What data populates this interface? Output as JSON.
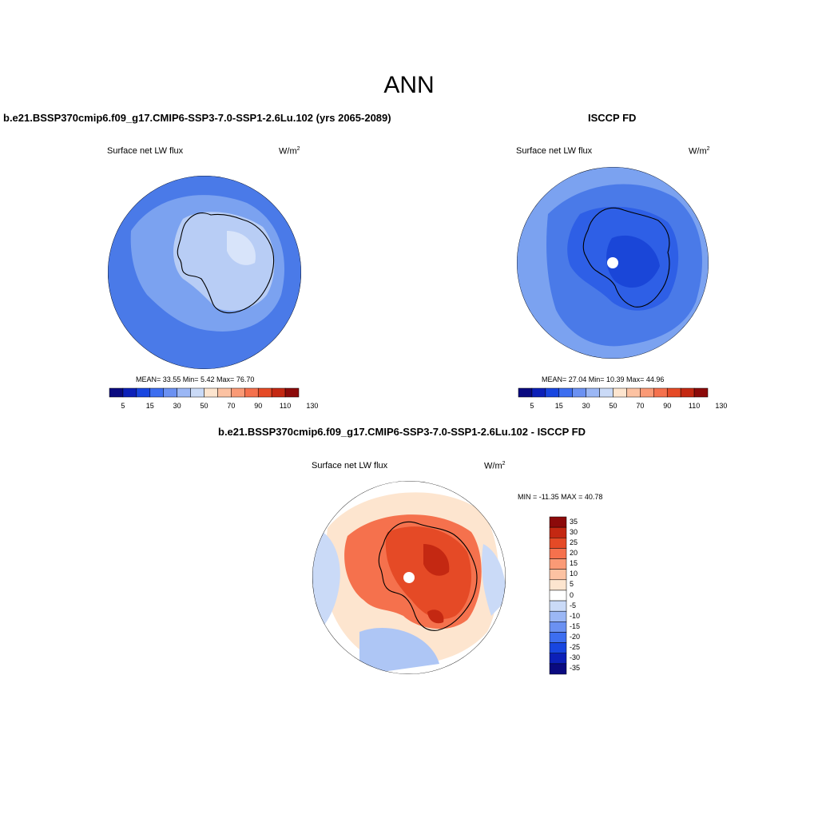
{
  "figure": {
    "title": "ANN"
  },
  "panels": {
    "model": {
      "title": "b.e21.BSSP370cmip6.f09_g17.CMIP6-SSP3-7.0-SSP1-2.6Lu.102 (yrs 2065-2089)",
      "variable": "Surface net LW flux",
      "units_base": "W/m",
      "units_exp": "2",
      "stats": "MEAN=  33.55  Min=   5.42  Max=  76.70"
    },
    "obs": {
      "title": "ISCCP FD",
      "variable": "Surface net LW flux",
      "units_base": "W/m",
      "units_exp": "2",
      "stats": "MEAN=  27.04  Min=  10.39  Max=  44.96"
    },
    "diff": {
      "title": "b.e21.BSSP370cmip6.f09_g17.CMIP6-SSP3-7.0-SSP1-2.6Lu.102 - ISCCP FD",
      "variable": "Surface net LW flux",
      "units_base": "W/m",
      "units_exp": "2",
      "stats": "MIN = -11.35 MAX =  40.78"
    }
  },
  "colorbars": {
    "abs_ticks": [
      "5",
      "15",
      "30",
      "50",
      "70",
      "90",
      "110",
      "130"
    ],
    "abs_colors": [
      "#0a0a80",
      "#0c20b8",
      "#1846e0",
      "#3d6ef0",
      "#6b91f2",
      "#9bb7f5",
      "#cadaf7",
      "#fde5cf",
      "#fcc2a2",
      "#fa9a76",
      "#f5714d",
      "#e54a26",
      "#c42812",
      "#8c0a0a"
    ],
    "diff_ticks": [
      "35",
      "30",
      "25",
      "20",
      "15",
      "10",
      "5",
      "0",
      "-5",
      "-10",
      "-15",
      "-20",
      "-25",
      "-30",
      "-35"
    ],
    "diff_colors": [
      "#8c0a0a",
      "#c42812",
      "#e54a26",
      "#f5714d",
      "#fa9a76",
      "#fcc2a2",
      "#fde5cf",
      "#ffffff",
      "#cadaf7",
      "#9bb7f5",
      "#6b91f2",
      "#3d6ef0",
      "#1846e0",
      "#0c20b8",
      "#0a0a80"
    ]
  },
  "map_colors": {
    "ocean_model": "#4a7ae8",
    "shelf_model": "#7ba2f0",
    "ice_model": "#b8cdf5",
    "ice_model_light": "#d8e4fa",
    "ocean_obs": "#4a7ae8",
    "obs_outer": "#7ba2f0",
    "obs_ice": "#2e5fe6",
    "obs_ice_dark": "#1a46d8",
    "diff_far": "#ffffff",
    "diff_blue": "#cadaf7",
    "diff_blue2": "#aec6f5",
    "diff_peach": "#fde5cf",
    "diff_orange": "#f5714d",
    "diff_red": "#e54a26",
    "diff_darkred": "#c42812"
  }
}
